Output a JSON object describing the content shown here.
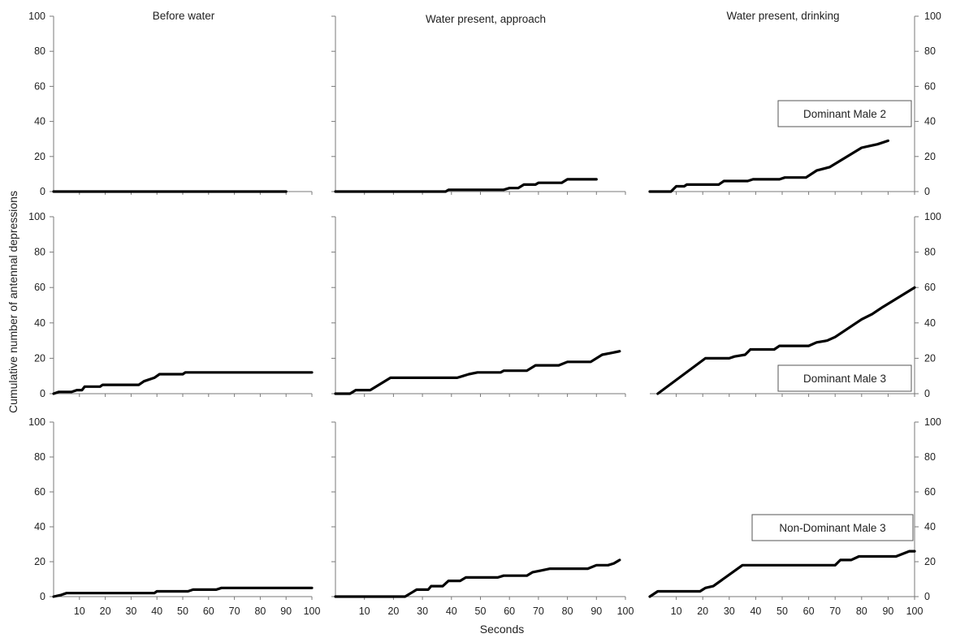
{
  "chart_data": {
    "type": "line",
    "ylabel": "Cumulative number of antennal depressions",
    "xlabel": "Seconds",
    "ylim": [
      0,
      100
    ],
    "xlim": [
      0,
      100
    ],
    "yticks": [
      0,
      20,
      40,
      60,
      80,
      100
    ],
    "xticks": [
      10,
      20,
      30,
      40,
      50,
      60,
      70,
      80,
      90,
      100
    ],
    "column_titles": [
      "Before water",
      "Water present, approach",
      "Water present, drinking"
    ],
    "row_labels": [
      "Dominant Male 2",
      "Dominant Male 3",
      "Non-Dominant Male 3"
    ],
    "series_color": "#000000",
    "panels": [
      {
        "row": 0,
        "col": 0,
        "points": [
          [
            0,
            0
          ],
          [
            90,
            0
          ]
        ]
      },
      {
        "row": 0,
        "col": 1,
        "points": [
          [
            0,
            0
          ],
          [
            38,
            0
          ],
          [
            39,
            1
          ],
          [
            58,
            1
          ],
          [
            60,
            2
          ],
          [
            63,
            2
          ],
          [
            65,
            4
          ],
          [
            69,
            4
          ],
          [
            70,
            5
          ],
          [
            78,
            5
          ],
          [
            80,
            7
          ],
          [
            90,
            7
          ]
        ]
      },
      {
        "row": 0,
        "col": 2,
        "points": [
          [
            0,
            0
          ],
          [
            8,
            0
          ],
          [
            10,
            3
          ],
          [
            13,
            3
          ],
          [
            14,
            4
          ],
          [
            26,
            4
          ],
          [
            28,
            6
          ],
          [
            37,
            6
          ],
          [
            39,
            7
          ],
          [
            49,
            7
          ],
          [
            51,
            8
          ],
          [
            59,
            8
          ],
          [
            63,
            12
          ],
          [
            68,
            14
          ],
          [
            80,
            25
          ],
          [
            83,
            26
          ],
          [
            86,
            27
          ],
          [
            90,
            29
          ]
        ]
      },
      {
        "row": 1,
        "col": 0,
        "points": [
          [
            0,
            0
          ],
          [
            2,
            1
          ],
          [
            7,
            1
          ],
          [
            9,
            2
          ],
          [
            11,
            2
          ],
          [
            12,
            4
          ],
          [
            18,
            4
          ],
          [
            19,
            5
          ],
          [
            33,
            5
          ],
          [
            35,
            7
          ],
          [
            39,
            9
          ],
          [
            41,
            11
          ],
          [
            50,
            11
          ],
          [
            51,
            12
          ],
          [
            90,
            12
          ],
          [
            100,
            12
          ]
        ]
      },
      {
        "row": 1,
        "col": 1,
        "points": [
          [
            0,
            0
          ],
          [
            5,
            0
          ],
          [
            7,
            2
          ],
          [
            12,
            2
          ],
          [
            19,
            9
          ],
          [
            42,
            9
          ],
          [
            44,
            10
          ],
          [
            46,
            11
          ],
          [
            49,
            12
          ],
          [
            57,
            12
          ],
          [
            58,
            13
          ],
          [
            66,
            13
          ],
          [
            69,
            16
          ],
          [
            77,
            16
          ],
          [
            80,
            18
          ],
          [
            88,
            18
          ],
          [
            92,
            22
          ],
          [
            95,
            23
          ],
          [
            98,
            24
          ]
        ]
      },
      {
        "row": 1,
        "col": 2,
        "points": [
          [
            3,
            0
          ],
          [
            21,
            20
          ],
          [
            30,
            20
          ],
          [
            32,
            21
          ],
          [
            36,
            22
          ],
          [
            38,
            25
          ],
          [
            47,
            25
          ],
          [
            49,
            27
          ],
          [
            60,
            27
          ],
          [
            63,
            29
          ],
          [
            67,
            30
          ],
          [
            70,
            32
          ],
          [
            80,
            42
          ],
          [
            84,
            45
          ],
          [
            88,
            49
          ],
          [
            100,
            60
          ]
        ]
      },
      {
        "row": 2,
        "col": 0,
        "points": [
          [
            0,
            0
          ],
          [
            3,
            1
          ],
          [
            5,
            2
          ],
          [
            39,
            2
          ],
          [
            40,
            3
          ],
          [
            52,
            3
          ],
          [
            54,
            4
          ],
          [
            63,
            4
          ],
          [
            65,
            5
          ],
          [
            100,
            5
          ]
        ]
      },
      {
        "row": 2,
        "col": 1,
        "points": [
          [
            0,
            0
          ],
          [
            24,
            0
          ],
          [
            28,
            4
          ],
          [
            32,
            4
          ],
          [
            33,
            6
          ],
          [
            37,
            6
          ],
          [
            39,
            9
          ],
          [
            43,
            9
          ],
          [
            45,
            11
          ],
          [
            56,
            11
          ],
          [
            58,
            12
          ],
          [
            66,
            12
          ],
          [
            68,
            14
          ],
          [
            71,
            15
          ],
          [
            74,
            16
          ],
          [
            87,
            16
          ],
          [
            90,
            18
          ],
          [
            94,
            18
          ],
          [
            96,
            19
          ],
          [
            98,
            21
          ]
        ]
      },
      {
        "row": 2,
        "col": 2,
        "points": [
          [
            0,
            0
          ],
          [
            3,
            3
          ],
          [
            19,
            3
          ],
          [
            20,
            4
          ],
          [
            21,
            5
          ],
          [
            24,
            6
          ],
          [
            35,
            18
          ],
          [
            70,
            18
          ],
          [
            72,
            21
          ],
          [
            76,
            21
          ],
          [
            79,
            23
          ],
          [
            93,
            23
          ],
          [
            98,
            26
          ],
          [
            100,
            26
          ]
        ]
      }
    ]
  }
}
